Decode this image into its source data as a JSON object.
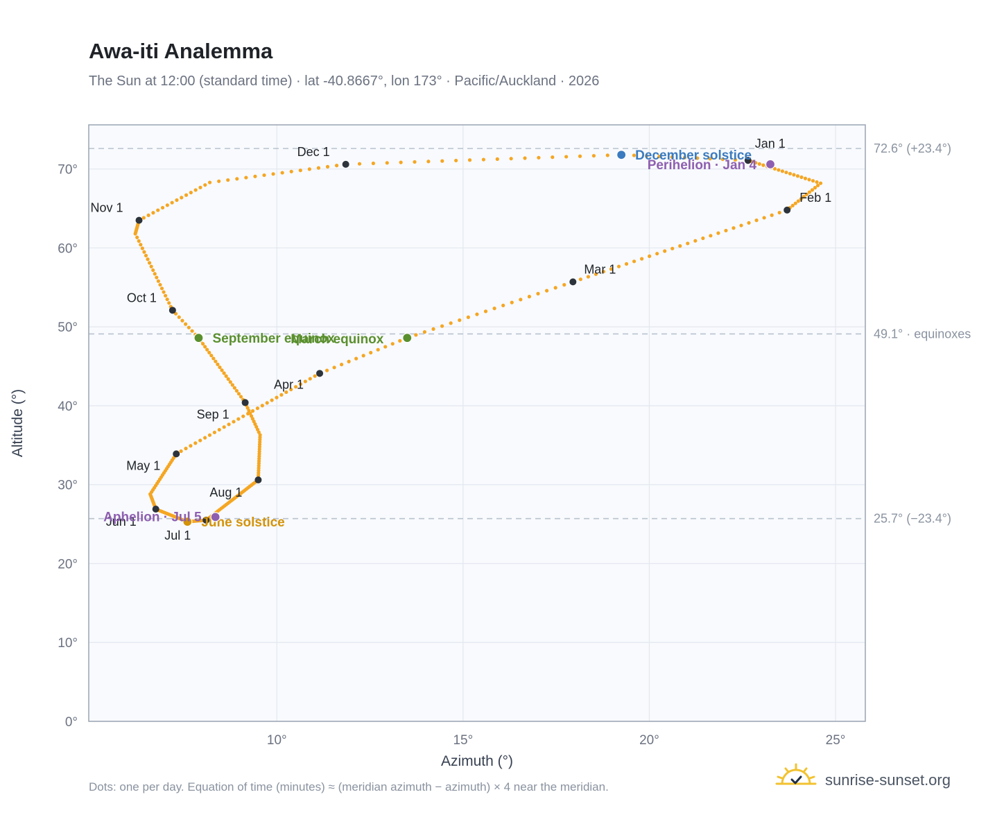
{
  "title": "Awa-iti Analemma",
  "subtitle": "The Sun at 12:00 (standard time) · lat -40.8667°, lon 173° · Pacific/Auckland · 2026",
  "footer_note": "Dots: one per day. Equation of time (minutes) ≈ (meridian azimuth − azimuth) × 4 near the meridian.",
  "brand": "sunrise-sunset.org",
  "colors": {
    "path": "#f5a623",
    "month_marker": "#2d333b",
    "equinox": "#5a8f2e",
    "december_solstice": "#3b7bbf",
    "june_solstice": "#d4930a",
    "apsis": "#8e5fb0",
    "plot_bg": "#f8fafd",
    "grid": "#e3e8ef",
    "frame": "#9aa4b2"
  },
  "chart_data": {
    "type": "scatter",
    "xlabel": "Azimuth (°)",
    "ylabel": "Altitude (°)",
    "xlim": [
      4.95,
      25.8
    ],
    "ylim": [
      0,
      75.6
    ],
    "x_ticks": [
      10,
      15,
      20,
      25
    ],
    "x_tick_labels": [
      "10°",
      "15°",
      "20°",
      "25°"
    ],
    "y_ticks": [
      0,
      10,
      20,
      30,
      40,
      50,
      60,
      70
    ],
    "y_tick_labels": [
      "0°",
      "10°",
      "20°",
      "30°",
      "40°",
      "50°",
      "60°",
      "70°"
    ],
    "grid": true,
    "reference_lines": [
      {
        "y": 72.6,
        "label": "72.6° (+23.4°)"
      },
      {
        "y": 49.1,
        "label": "49.1° · equinoxes"
      },
      {
        "y": 25.7,
        "label": "25.7° (−23.4°)"
      }
    ],
    "path_points": [
      {
        "doy": 1,
        "x": 22.65,
        "y": 71.1
      },
      {
        "doy": 20,
        "x": 24.6,
        "y": 68.2
      },
      {
        "doy": 32,
        "x": 23.7,
        "y": 64.8
      },
      {
        "doy": 60,
        "x": 17.95,
        "y": 55.7
      },
      {
        "doy": 79,
        "x": 13.5,
        "y": 48.6
      },
      {
        "doy": 91,
        "x": 11.15,
        "y": 44.1
      },
      {
        "doy": 121,
        "x": 7.3,
        "y": 33.9
      },
      {
        "doy": 140,
        "x": 6.6,
        "y": 28.8
      },
      {
        "doy": 152,
        "x": 6.75,
        "y": 26.9
      },
      {
        "doy": 172,
        "x": 7.6,
        "y": 25.3
      },
      {
        "doy": 182,
        "x": 8.1,
        "y": 25.5
      },
      {
        "doy": 213,
        "x": 9.5,
        "y": 30.6
      },
      {
        "doy": 232,
        "x": 9.55,
        "y": 36.3
      },
      {
        "doy": 244,
        "x": 9.15,
        "y": 40.4
      },
      {
        "doy": 266,
        "x": 7.9,
        "y": 48.6
      },
      {
        "doy": 274,
        "x": 7.2,
        "y": 52.1
      },
      {
        "doy": 295,
        "x": 6.2,
        "y": 61.8
      },
      {
        "doy": 305,
        "x": 6.3,
        "y": 63.5
      },
      {
        "doy": 320,
        "x": 8.2,
        "y": 68.3
      },
      {
        "doy": 335,
        "x": 11.85,
        "y": 70.6
      },
      {
        "doy": 355,
        "x": 19.25,
        "y": 71.8
      },
      {
        "doy": 365,
        "x": 22.65,
        "y": 71.1
      }
    ],
    "month_markers": [
      {
        "label": "Jan 1",
        "x": 22.65,
        "y": 71.1,
        "lx": 10,
        "ly": -18
      },
      {
        "label": "Feb 1",
        "x": 23.7,
        "y": 64.8,
        "lx": 18,
        "ly": -12
      },
      {
        "label": "Mar 1",
        "x": 17.95,
        "y": 55.7,
        "lx": 16,
        "ly": -12
      },
      {
        "label": "Apr 1",
        "x": 11.15,
        "y": 44.1,
        "lx": -66,
        "ly": 22
      },
      {
        "label": "May 1",
        "x": 7.3,
        "y": 33.9,
        "lx": -72,
        "ly": 23
      },
      {
        "label": "Jun 1",
        "x": 6.75,
        "y": 26.9,
        "lx": -72,
        "ly": 24
      },
      {
        "label": "Jul 1",
        "x": 8.1,
        "y": 25.5,
        "lx": -60,
        "ly": 28
      },
      {
        "label": "Aug 1",
        "x": 9.5,
        "y": 30.6,
        "lx": -70,
        "ly": 24
      },
      {
        "label": "Sep 1",
        "x": 9.15,
        "y": 40.4,
        "lx": -70,
        "ly": 23
      },
      {
        "label": "Oct 1",
        "x": 7.2,
        "y": 52.1,
        "lx": -66,
        "ly": -12
      },
      {
        "label": "Nov 1",
        "x": 6.3,
        "y": 63.5,
        "lx": -70,
        "ly": -12
      },
      {
        "label": "Dec 1",
        "x": 11.85,
        "y": 70.6,
        "lx": -70,
        "ly": -12
      }
    ],
    "events": [
      {
        "label": "March equinox",
        "x": 13.5,
        "y": 48.6,
        "kind": "equinox",
        "lx": -168,
        "ly": 8,
        "anchor": "start"
      },
      {
        "label": "September equinox",
        "x": 7.9,
        "y": 48.6,
        "kind": "equinox",
        "lx": 20,
        "ly": 7,
        "anchor": "start"
      },
      {
        "label": "December solstice",
        "x": 19.25,
        "y": 71.8,
        "kind": "december_solstice",
        "lx": 20,
        "ly": 7,
        "anchor": "start"
      },
      {
        "label": "June solstice",
        "x": 7.6,
        "y": 25.3,
        "kind": "june_solstice",
        "lx": 20,
        "ly": 7,
        "anchor": "start"
      },
      {
        "label": "Perihelion · Jan 4",
        "x": 23.25,
        "y": 70.6,
        "kind": "apsis",
        "lx": -20,
        "ly": 7,
        "anchor": "end"
      },
      {
        "label": "Aphelion · Jul 5",
        "x": 8.35,
        "y": 25.9,
        "kind": "apsis",
        "lx": -20,
        "ly": 6,
        "anchor": "end"
      }
    ]
  }
}
